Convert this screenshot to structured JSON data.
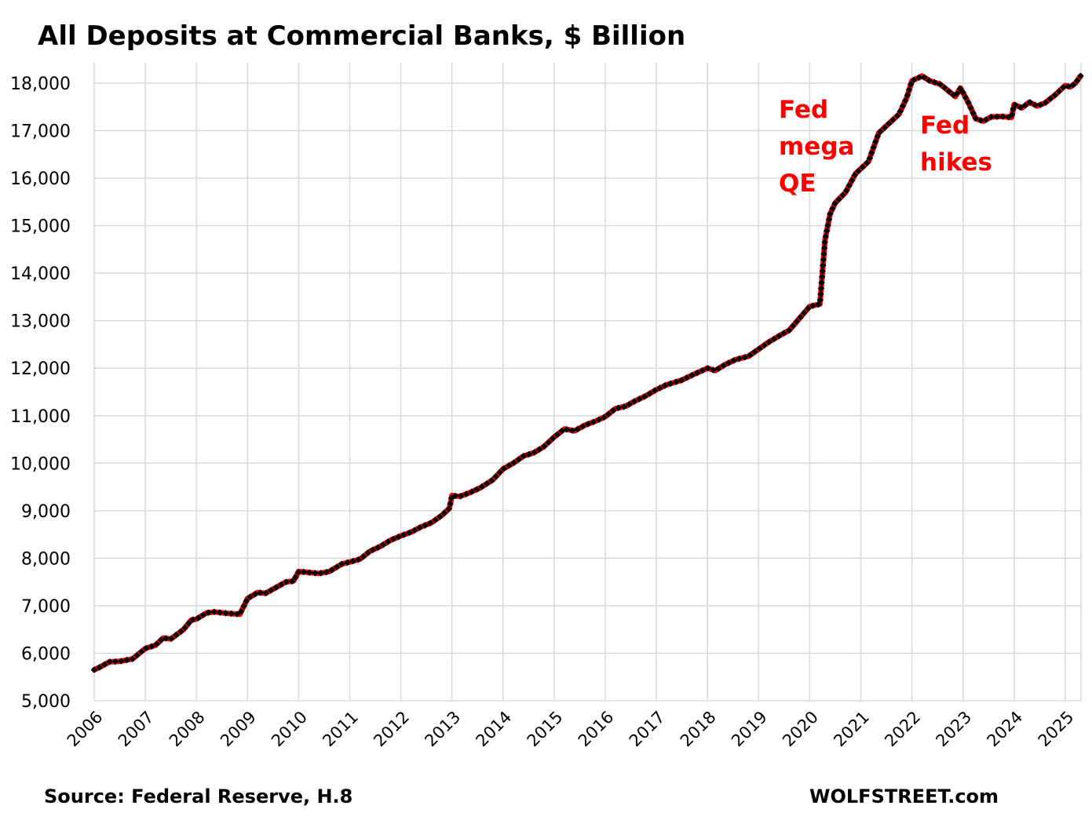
{
  "chart_data": {
    "type": "line",
    "title": "All Deposits at Commercial Banks, $ Billion",
    "xlabel": "",
    "ylabel": "",
    "xlim": [
      2006,
      2025.3
    ],
    "ylim": [
      5000,
      18500
    ],
    "grid": true,
    "y_ticks": [
      5000,
      6000,
      7000,
      8000,
      9000,
      10000,
      11000,
      12000,
      13000,
      14000,
      15000,
      16000,
      17000,
      18000
    ],
    "y_tick_labels": [
      "5,000",
      "6,000",
      "7,000",
      "8,000",
      "9,000",
      "10,000",
      "11,000",
      "12,000",
      "13,000",
      "14,000",
      "15,000",
      "16,000",
      "17,000",
      "18,000"
    ],
    "x_tick_labels": [
      "2006",
      "2007",
      "2008",
      "2009",
      "2010",
      "2011",
      "2012",
      "2013",
      "2014",
      "2015",
      "2016",
      "2017",
      "2018",
      "2019",
      "2020",
      "2021",
      "2022",
      "2023",
      "2024",
      "2025"
    ],
    "series": [
      {
        "name": "All Deposits at Commercial Banks",
        "color": "#ff0000",
        "marker_color": "#000000",
        "x": [
          2006.0,
          2006.1,
          2006.3,
          2006.5,
          2006.75,
          2007.0,
          2007.2,
          2007.35,
          2007.5,
          2007.75,
          2007.9,
          2008.0,
          2008.2,
          2008.35,
          2008.6,
          2008.85,
          2009.0,
          2009.2,
          2009.35,
          2009.55,
          2009.75,
          2009.9,
          2010.0,
          2010.2,
          2010.4,
          2010.6,
          2010.85,
          2011.0,
          2011.2,
          2011.4,
          2011.6,
          2011.8,
          2012.0,
          2012.2,
          2012.4,
          2012.6,
          2012.8,
          2012.95,
          2013.0,
          2013.15,
          2013.35,
          2013.55,
          2013.8,
          2014.0,
          2014.2,
          2014.4,
          2014.6,
          2014.8,
          2015.0,
          2015.2,
          2015.4,
          2015.6,
          2015.8,
          2016.0,
          2016.2,
          2016.4,
          2016.6,
          2016.8,
          2017.0,
          2017.2,
          2017.35,
          2017.5,
          2017.75,
          2018.0,
          2018.15,
          2018.35,
          2018.55,
          2018.8,
          2019.0,
          2019.2,
          2019.4,
          2019.6,
          2019.8,
          2020.0,
          2020.2,
          2020.3,
          2020.4,
          2020.5,
          2020.7,
          2020.9,
          2021.0,
          2021.15,
          2021.35,
          2021.5,
          2021.75,
          2021.9,
          2022.0,
          2022.1,
          2022.2,
          2022.35,
          2022.55,
          2022.7,
          2022.85,
          2022.95,
          2023.1,
          2023.25,
          2023.4,
          2023.55,
          2023.75,
          2023.95,
          2024.0,
          2024.15,
          2024.3,
          2024.45,
          2024.6,
          2024.8,
          2025.0,
          2025.1,
          2025.2,
          2025.3
        ],
        "values": [
          5650,
          5700,
          5820,
          5830,
          5880,
          6100,
          6170,
          6320,
          6300,
          6500,
          6700,
          6720,
          6850,
          6870,
          6840,
          6820,
          7150,
          7280,
          7260,
          7380,
          7500,
          7520,
          7720,
          7700,
          7680,
          7720,
          7880,
          7920,
          7980,
          8150,
          8250,
          8380,
          8470,
          8550,
          8660,
          8750,
          8900,
          9050,
          9320,
          9300,
          9380,
          9480,
          9650,
          9880,
          10000,
          10150,
          10220,
          10350,
          10550,
          10720,
          10680,
          10800,
          10880,
          10980,
          11150,
          11200,
          11320,
          11420,
          11550,
          11650,
          11700,
          11750,
          11880,
          12000,
          11950,
          12080,
          12180,
          12250,
          12400,
          12550,
          12680,
          12800,
          13050,
          13300,
          13350,
          14700,
          15250,
          15480,
          15700,
          16100,
          16200,
          16350,
          16950,
          17100,
          17350,
          17700,
          18050,
          18100,
          18150,
          18050,
          17980,
          17850,
          17720,
          17900,
          17600,
          17250,
          17200,
          17290,
          17300,
          17280,
          17550,
          17480,
          17600,
          17520,
          17580,
          17750,
          17950,
          17920,
          18000,
          18150
        ]
      }
    ],
    "annotations": [
      {
        "text_lines": [
          "Fed",
          "mega",
          "QE"
        ],
        "color": "#ff0000"
      },
      {
        "text_lines": [
          "Fed",
          "hikes"
        ],
        "color": "#ff0000"
      }
    ]
  },
  "footer": {
    "source": "Source: Federal Reserve, H.8",
    "brand": "WOLFSTREET.com"
  }
}
